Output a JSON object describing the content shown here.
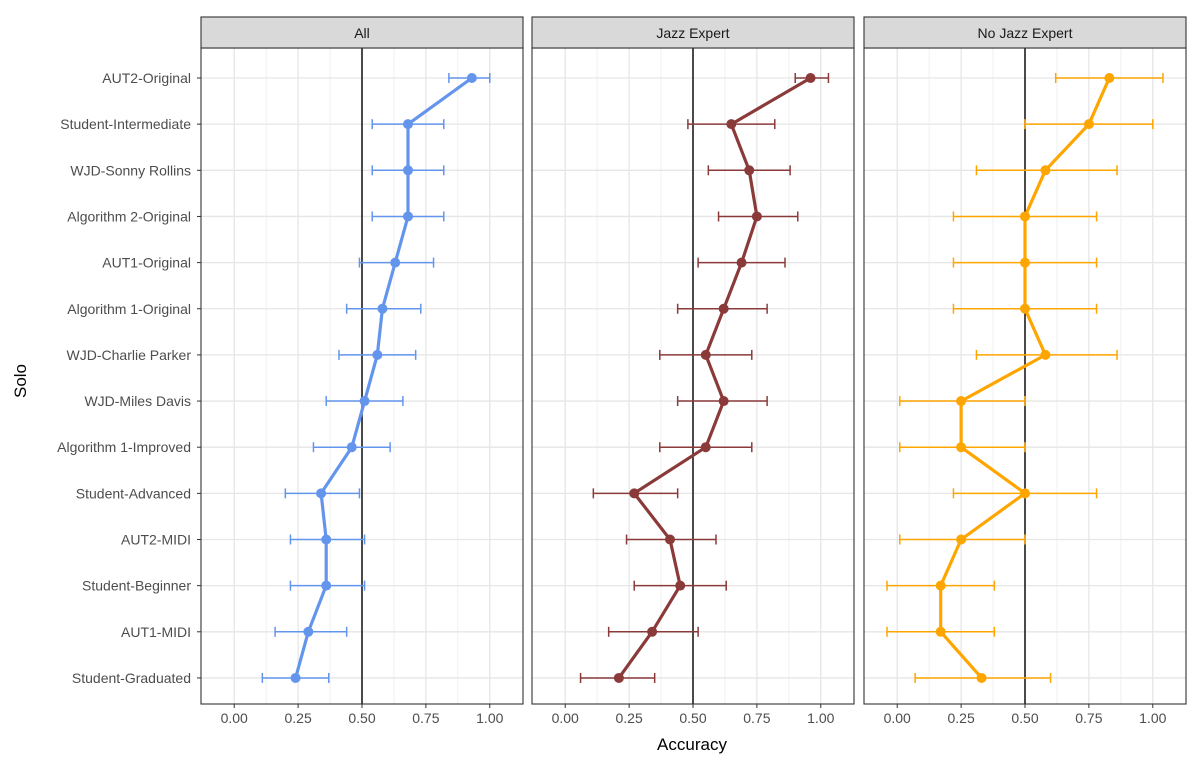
{
  "chart_data": {
    "type": "line",
    "ylabel": "Solo",
    "xlabel": "Accuracy",
    "xlim": [
      -0.13,
      1.13
    ],
    "xticks": [
      0.0,
      0.25,
      0.5,
      0.75,
      1.0
    ],
    "xtick_labels": [
      "0.00",
      "0.25",
      "0.50",
      "0.75",
      "1.00"
    ],
    "reference_line": 0.5,
    "grid": true,
    "categories": [
      "AUT2-Original",
      "Student-Intermediate",
      "WJD-Sonny Rollins",
      "Algorithm 2-Original",
      "AUT1-Original",
      "Algorithm 1-Original",
      "WJD-Charlie Parker",
      "WJD-Miles Davis",
      "Algorithm 1-Improved",
      "Student-Advanced",
      "AUT2-MIDI",
      "Student-Beginner",
      "AUT1-MIDI",
      "Student-Graduated"
    ],
    "panels": [
      {
        "name": "All",
        "color": "#6495ED",
        "values": [
          0.93,
          0.68,
          0.68,
          0.68,
          0.63,
          0.58,
          0.56,
          0.51,
          0.46,
          0.34,
          0.36,
          0.36,
          0.29,
          0.24
        ],
        "ci_low": [
          0.84,
          0.54,
          0.54,
          0.54,
          0.49,
          0.44,
          0.41,
          0.36,
          0.31,
          0.2,
          0.22,
          0.22,
          0.16,
          0.11
        ],
        "ci_high": [
          1.0,
          0.82,
          0.82,
          0.82,
          0.78,
          0.73,
          0.71,
          0.66,
          0.61,
          0.49,
          0.51,
          0.51,
          0.44,
          0.37
        ]
      },
      {
        "name": "Jazz Expert",
        "color": "#8B3A3A",
        "values": [
          0.96,
          0.65,
          0.72,
          0.75,
          0.69,
          0.62,
          0.55,
          0.62,
          0.55,
          0.27,
          0.41,
          0.45,
          0.34,
          0.21
        ],
        "ci_low": [
          0.9,
          0.48,
          0.56,
          0.6,
          0.52,
          0.44,
          0.37,
          0.44,
          0.37,
          0.11,
          0.24,
          0.27,
          0.17,
          0.06
        ],
        "ci_high": [
          1.03,
          0.82,
          0.88,
          0.91,
          0.86,
          0.79,
          0.73,
          0.79,
          0.73,
          0.44,
          0.59,
          0.63,
          0.52,
          0.35
        ]
      },
      {
        "name": "No Jazz Expert",
        "color": "#FFA500",
        "values": [
          0.83,
          0.75,
          0.58,
          0.5,
          0.5,
          0.5,
          0.58,
          0.25,
          0.25,
          0.5,
          0.25,
          0.17,
          0.17,
          0.33
        ],
        "ci_low": [
          0.62,
          0.5,
          0.31,
          0.22,
          0.22,
          0.22,
          0.31,
          0.01,
          0.01,
          0.22,
          0.01,
          -0.04,
          -0.04,
          0.07
        ],
        "ci_high": [
          1.04,
          1.0,
          0.86,
          0.78,
          0.78,
          0.78,
          0.86,
          0.5,
          0.5,
          0.78,
          0.5,
          0.38,
          0.38,
          0.6
        ]
      }
    ]
  }
}
